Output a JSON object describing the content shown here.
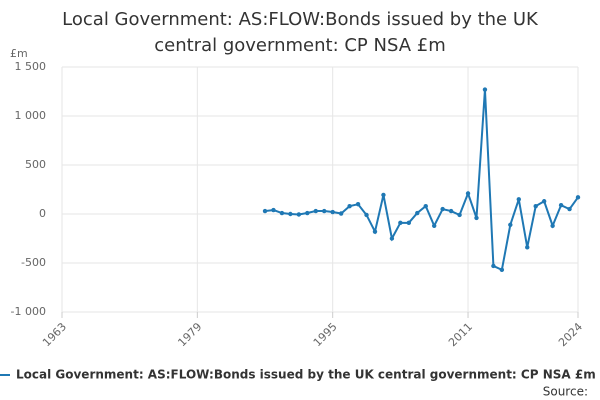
{
  "chart_data": {
    "type": "line",
    "title": [
      "Local Government: AS:FLOW:Bonds issued by the UK",
      "central government: CP NSA £m"
    ],
    "y_axis_label": "£m",
    "source": "Source:",
    "x": [
      1987,
      1988,
      1989,
      1990,
      1991,
      1992,
      1993,
      1994,
      1995,
      1996,
      1997,
      1998,
      1999,
      2000,
      2001,
      2002,
      2003,
      2004,
      2005,
      2006,
      2007,
      2008,
      2009,
      2010,
      2011,
      2012,
      2013,
      2014,
      2015,
      2016,
      2017,
      2018,
      2019,
      2020,
      2021,
      2022,
      2023,
      2024
    ],
    "series": [
      {
        "name": "Local Government: AS:FLOW:Bonds issued by the UK central government: CP NSA £m",
        "color": "#1f78b4",
        "values": [
          30,
          40,
          10,
          0,
          -5,
          10,
          30,
          30,
          20,
          5,
          80,
          100,
          -10,
          -180,
          195,
          -250,
          -90,
          -90,
          10,
          80,
          -120,
          50,
          30,
          -10,
          210,
          -40,
          1270,
          -530,
          -570,
          -110,
          150,
          -340,
          80,
          130,
          -120,
          90,
          50,
          170
        ]
      }
    ],
    "xlim": [
      1963,
      2024
    ],
    "xticks": [
      1963,
      1979,
      1995,
      2011,
      2024
    ],
    "ylim": [
      -1000,
      1500
    ],
    "yticks": [
      {
        "value": -1000,
        "label": "-1 000"
      },
      -500,
      0,
      500,
      {
        "value": 1000,
        "label": "1 000"
      },
      {
        "value": 1500,
        "label": "1 500"
      }
    ],
    "grid": true
  }
}
